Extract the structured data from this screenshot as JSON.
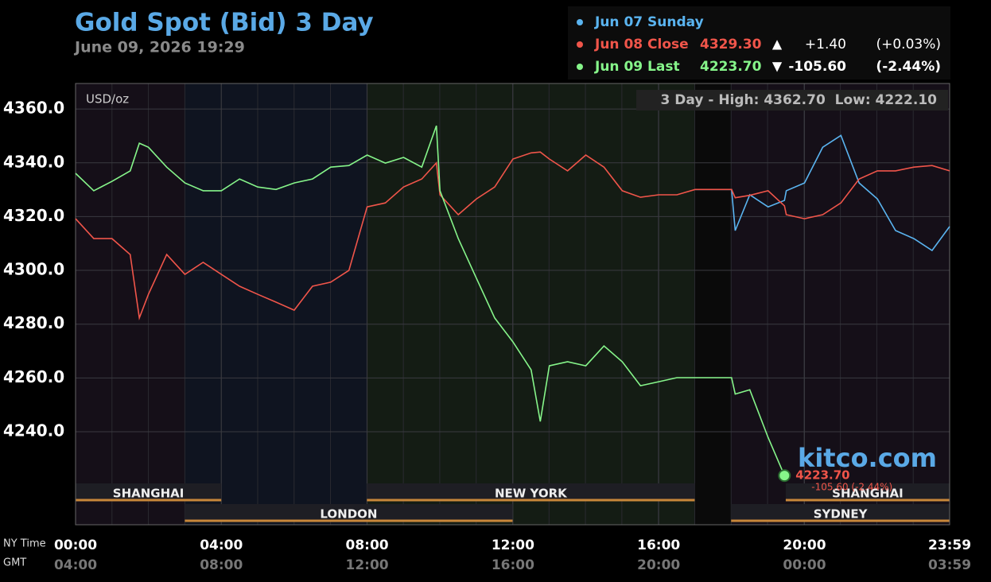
{
  "chart_data": {
    "type": "line",
    "title": "Gold Spot (Bid) 3 Day",
    "subtitle": "June 09, 2026 19:29",
    "unit_label": "USD/oz",
    "range_note": "3 Day - High: 4362.70  Low: 4222.10",
    "watermark": "kitco.com",
    "last_label": "4223.70",
    "last_change_label": "-105.60 (-2.44%)",
    "x_axis_label": "NY Time",
    "x2_axis_label": "GMT",
    "x": [
      0,
      0.5,
      1,
      1.5,
      1.75,
      2,
      2.5,
      3,
      3.5,
      4,
      4.5,
      5,
      5.5,
      6,
      6.5,
      7,
      7.5,
      8,
      8.5,
      9,
      9.5,
      9.9,
      10,
      10.5,
      11,
      11.5,
      12,
      12.5,
      12.75,
      13,
      13.5,
      14,
      14.5,
      15,
      15.5,
      16,
      16.5,
      17,
      17.5,
      18,
      18.1,
      18.5,
      19,
      19.45,
      19.5,
      20,
      20.5,
      21,
      21.5,
      22,
      22.5,
      23,
      23.5,
      23.983
    ],
    "series": [
      {
        "name": "Jun 07 Sunday",
        "color": "#5ab4f0",
        "values": [
          null,
          null,
          null,
          null,
          null,
          null,
          null,
          null,
          null,
          null,
          null,
          null,
          null,
          null,
          null,
          null,
          null,
          null,
          null,
          null,
          null,
          null,
          null,
          null,
          null,
          null,
          null,
          null,
          null,
          null,
          null,
          null,
          null,
          null,
          null,
          null,
          null,
          4330.1,
          4330.1,
          4330.1,
          4314.8,
          4328.1,
          4323.6,
          4326,
          4329.6,
          4332.5,
          4345.8,
          4350.2,
          4332.5,
          4326.6,
          4314.8,
          4311.8,
          4307.4,
          4316.3
        ]
      },
      {
        "name": "Jun 08 Close",
        "color": "#f0554a",
        "last_price": "4329.30",
        "arrow": "▲",
        "change": "+1.40",
        "change_pct": "(+0.03%)",
        "values": [
          4319.2,
          4311.8,
          4311.8,
          4305.9,
          4282.3,
          4291.1,
          4305.9,
          4298.5,
          4303,
          4298.5,
          4294.1,
          4291.1,
          4288.2,
          4285.2,
          4294.1,
          4295.6,
          4300,
          4323.6,
          4325.1,
          4331,
          4334,
          4340,
          4328.1,
          4320.7,
          4326.6,
          4331,
          4341.4,
          4343.7,
          4344,
          4341.4,
          4337,
          4342.9,
          4338.4,
          4329.6,
          4327.2,
          4328.1,
          4328.1,
          4330.1,
          4330.1,
          4330.1,
          4327,
          4327.9,
          4329.6,
          4324,
          4320.7,
          4319.2,
          4320.7,
          4325.1,
          4334,
          4337,
          4337,
          4338.4,
          4339,
          4337
        ]
      },
      {
        "name": "Jun 09 Last",
        "color": "#86f58a",
        "last_price": "4223.70",
        "arrow": "▼",
        "change": "-105.60",
        "change_pct": "(-2.44%)",
        "values": [
          4336.1,
          4329.6,
          4333.1,
          4337,
          4347.3,
          4345.8,
          4338.4,
          4332.5,
          4329.6,
          4329.6,
          4334,
          4331,
          4330.1,
          4332.5,
          4334,
          4338.4,
          4339,
          4342.9,
          4339.9,
          4342,
          4338.4,
          4353.8,
          4329.6,
          4311.8,
          4297,
          4282.3,
          4273.4,
          4263,
          4243.8,
          4264.5,
          4266,
          4264.5,
          4271.9,
          4266,
          4257.1,
          4258.6,
          4260.1,
          4260.1,
          4260.1,
          4260.1,
          4254,
          4255.6,
          4237.9,
          4223.7,
          null,
          null,
          null,
          null,
          null,
          null,
          null,
          null,
          null,
          null
        ]
      }
    ],
    "xlim": [
      0,
      23.983
    ],
    "xticks": [
      {
        "value": 0,
        "label": "00:00"
      },
      {
        "value": 4,
        "label": "04:00"
      },
      {
        "value": 8,
        "label": "08:00"
      },
      {
        "value": 12,
        "label": "12:00"
      },
      {
        "value": 16,
        "label": "16:00"
      },
      {
        "value": 20,
        "label": "20:00"
      },
      {
        "value": 23.983,
        "label": "23:59"
      }
    ],
    "gmt_labels": [
      "04:00",
      "08:00",
      "12:00",
      "16:00",
      "20:00",
      "00:00",
      "03:59"
    ],
    "ylim": [
      4205.4,
      4369.5
    ],
    "yticks": [
      {
        "value": 4240,
        "label": "4240.0"
      },
      {
        "value": 4260,
        "label": "4260.0"
      },
      {
        "value": 4280,
        "label": "4280.0"
      },
      {
        "value": 4300,
        "label": "4300.0"
      },
      {
        "value": 4320,
        "label": "4320.0"
      },
      {
        "value": 4340,
        "label": "4340.0"
      },
      {
        "value": 4360,
        "label": "4360.0"
      }
    ],
    "grid": true,
    "sessions": [
      "SHANGHAI",
      "LONDON",
      "NEW YORK",
      "SHANGHAI",
      "SYDNEY"
    ]
  }
}
